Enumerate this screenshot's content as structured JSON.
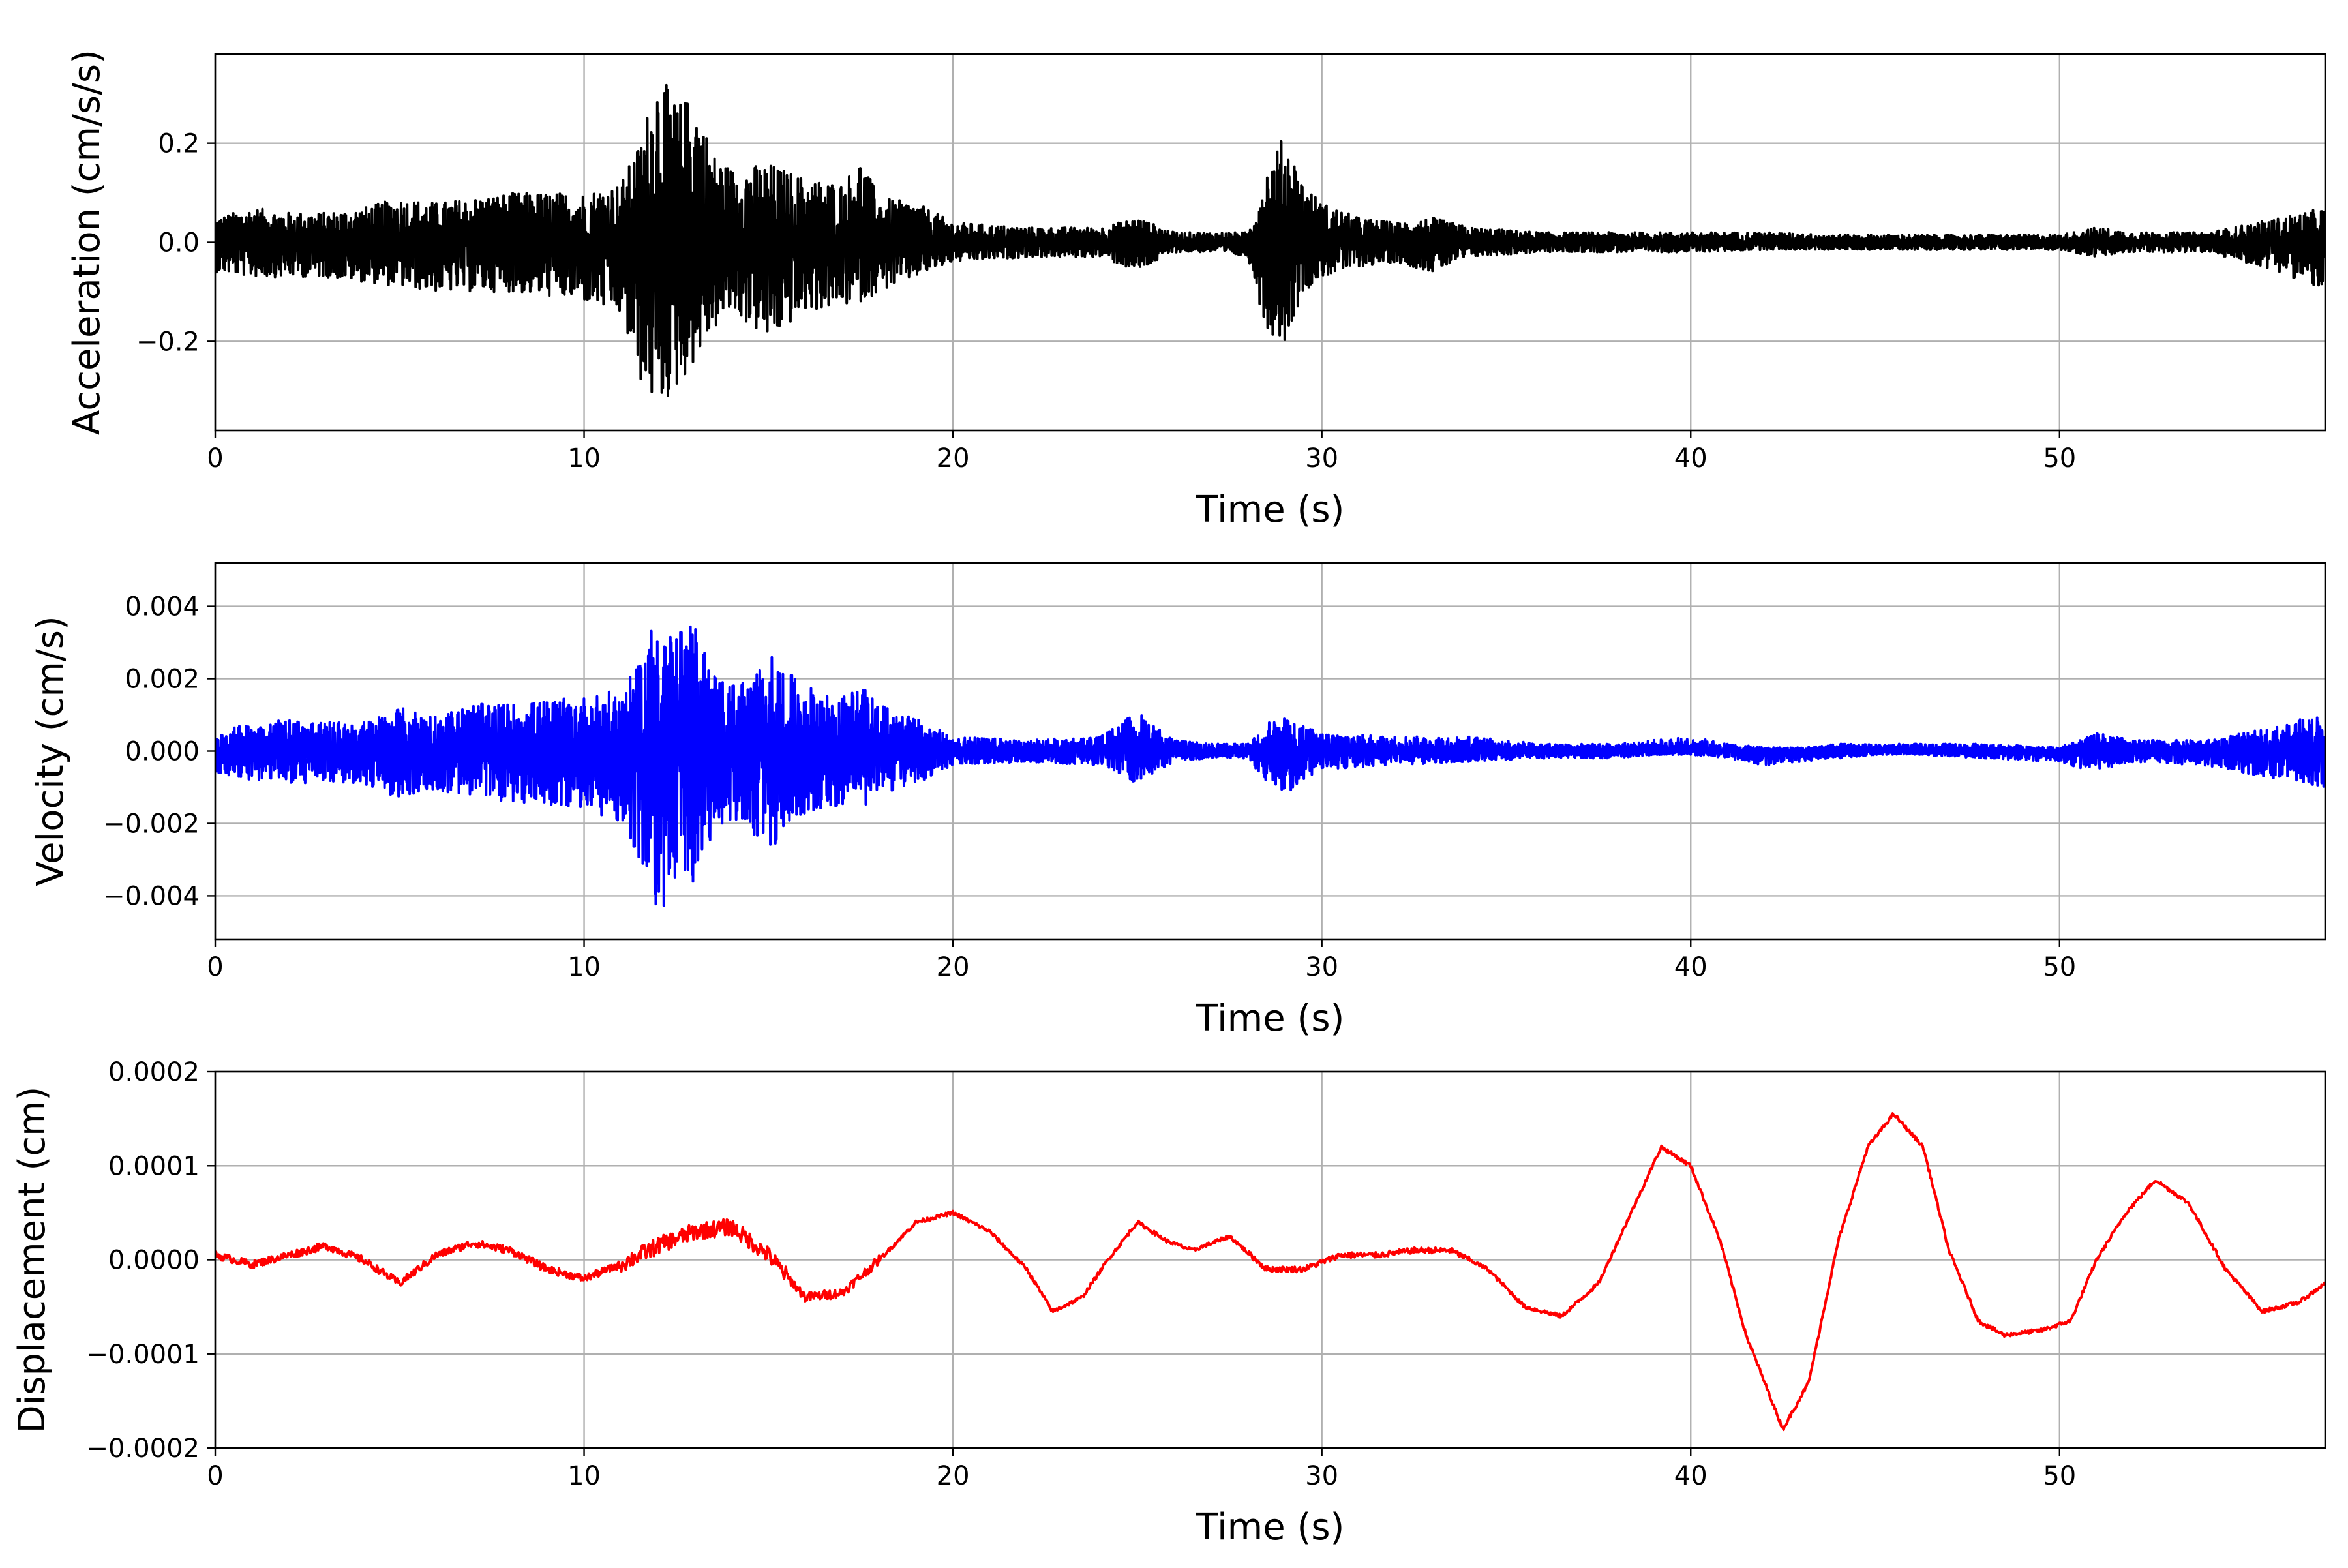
{
  "chart_data": [
    {
      "type": "line",
      "title": "",
      "xlabel": "Time (s)",
      "ylabel": "Acceleration (cm/s/s)",
      "xlim": [
        0,
        57.2
      ],
      "ylim": [
        -0.38,
        0.38
      ],
      "xticks": [
        0,
        10,
        20,
        30,
        40,
        50
      ],
      "xtick_labels": [
        "0",
        "10",
        "20",
        "30",
        "40",
        "50"
      ],
      "yticks": [
        -0.2,
        0.0,
        0.2
      ],
      "ytick_labels": [
        "−0.2",
        "0.0",
        "0.2"
      ],
      "grid": true,
      "color": "#000000",
      "envelope": {
        "x": [
          0,
          1,
          2,
          3,
          4,
          5,
          6,
          7,
          8,
          9,
          10,
          11,
          11.5,
          12,
          12.5,
          13,
          13.5,
          14,
          15,
          16,
          17,
          17.5,
          18,
          19,
          20,
          22,
          24,
          25,
          26,
          27,
          28,
          28.5,
          29,
          29.5,
          30,
          31,
          32,
          33,
          34,
          36,
          38,
          40,
          42,
          44,
          46,
          48,
          50,
          51,
          52,
          54,
          56,
          57.2
        ],
        "upper": [
          0.05,
          0.07,
          0.06,
          0.06,
          0.07,
          0.09,
          0.08,
          0.09,
          0.1,
          0.1,
          0.1,
          0.12,
          0.2,
          0.35,
          0.28,
          0.3,
          0.18,
          0.15,
          0.16,
          0.13,
          0.12,
          0.17,
          0.09,
          0.08,
          0.04,
          0.03,
          0.03,
          0.05,
          0.02,
          0.02,
          0.02,
          0.15,
          0.22,
          0.12,
          0.08,
          0.05,
          0.04,
          0.05,
          0.03,
          0.02,
          0.02,
          0.02,
          0.02,
          0.015,
          0.015,
          0.015,
          0.015,
          0.03,
          0.02,
          0.02,
          0.05,
          0.07
        ],
        "lower": [
          -0.06,
          -0.07,
          -0.07,
          -0.07,
          -0.08,
          -0.09,
          -0.1,
          -0.1,
          -0.1,
          -0.11,
          -0.12,
          -0.15,
          -0.28,
          -0.34,
          -0.3,
          -0.24,
          -0.18,
          -0.14,
          -0.2,
          -0.14,
          -0.13,
          -0.12,
          -0.1,
          -0.07,
          -0.04,
          -0.03,
          -0.03,
          -0.06,
          -0.02,
          -0.02,
          -0.03,
          -0.18,
          -0.2,
          -0.1,
          -0.07,
          -0.05,
          -0.04,
          -0.06,
          -0.03,
          -0.02,
          -0.02,
          -0.02,
          -0.015,
          -0.015,
          -0.015,
          -0.015,
          -0.015,
          -0.03,
          -0.02,
          -0.02,
          -0.06,
          -0.1
        ]
      }
    },
    {
      "type": "line",
      "title": "",
      "xlabel": "Time (s)",
      "ylabel": "Velocity (cm/s)",
      "xlim": [
        0,
        57.2
      ],
      "ylim": [
        -0.0052,
        0.0052
      ],
      "xticks": [
        0,
        10,
        20,
        30,
        40,
        50
      ],
      "xtick_labels": [
        "0",
        "10",
        "20",
        "30",
        "40",
        "50"
      ],
      "yticks": [
        -0.004,
        -0.002,
        0.0,
        0.002,
        0.004
      ],
      "ytick_labels": [
        "−0.004",
        "−0.002",
        "0.000",
        "0.002",
        "0.004"
      ],
      "grid": true,
      "color": "#0000ff",
      "envelope": {
        "x": [
          0,
          1,
          2,
          3,
          4,
          5,
          6,
          7,
          8,
          9,
          10,
          11,
          11.5,
          12,
          12.5,
          13,
          13.5,
          14,
          14.5,
          15,
          15.5,
          16,
          17,
          17.5,
          18,
          19,
          20,
          22,
          24,
          25,
          26,
          27,
          28,
          28.5,
          29,
          30,
          32,
          34,
          36,
          38,
          39,
          40,
          41,
          42,
          43,
          44,
          45,
          46,
          48,
          50,
          51,
          52,
          54,
          56,
          57.2
        ],
        "upper": [
          0.0005,
          0.0008,
          0.0009,
          0.0008,
          0.0008,
          0.0012,
          0.001,
          0.0013,
          0.0013,
          0.0014,
          0.0015,
          0.0017,
          0.0024,
          0.0041,
          0.0033,
          0.0035,
          0.0022,
          0.0019,
          0.002,
          0.0027,
          0.0022,
          0.0018,
          0.0015,
          0.0018,
          0.0013,
          0.0009,
          0.0004,
          0.0003,
          0.0004,
          0.0011,
          0.0003,
          0.0002,
          0.0002,
          0.0008,
          0.0009,
          0.0005,
          0.0004,
          0.0004,
          0.0002,
          0.0002,
          0.0003,
          0.0004,
          0.0002,
          0.0001,
          0.0001,
          0.0002,
          0.0002,
          0.0002,
          0.0002,
          0.0001,
          0.0005,
          0.0003,
          0.0003,
          0.0007,
          0.0011
        ],
        "lower": [
          -0.0006,
          -0.0008,
          -0.0009,
          -0.0009,
          -0.0009,
          -0.0013,
          -0.0011,
          -0.0013,
          -0.0014,
          -0.0015,
          -0.0016,
          -0.002,
          -0.0032,
          -0.0046,
          -0.0037,
          -0.0038,
          -0.0024,
          -0.0019,
          -0.0022,
          -0.0028,
          -0.0022,
          -0.0017,
          -0.0015,
          -0.0016,
          -0.0012,
          -0.0009,
          -0.0004,
          -0.0003,
          -0.0004,
          -0.0009,
          -0.0003,
          -0.0002,
          -0.0002,
          -0.0009,
          -0.0012,
          -0.0005,
          -0.0004,
          -0.0003,
          -0.0002,
          -0.0002,
          -0.0001,
          -0.0001,
          -0.0002,
          -0.0004,
          -0.0003,
          -0.0002,
          -0.0001,
          -0.0001,
          -0.0002,
          -0.0003,
          -0.0006,
          -0.0003,
          -0.0004,
          -0.0008,
          -0.001
        ]
      }
    },
    {
      "type": "line",
      "title": "",
      "xlabel": "Time (s)",
      "ylabel": "Displacement (cm)",
      "xlim": [
        0,
        57.2
      ],
      "ylim": [
        -0.0002,
        0.0002
      ],
      "xticks": [
        0,
        10,
        20,
        30,
        40,
        50
      ],
      "xtick_labels": [
        "0",
        "10",
        "20",
        "30",
        "40",
        "50"
      ],
      "yticks": [
        -0.0002,
        -0.0001,
        0.0,
        0.0001,
        0.0002
      ],
      "ytick_labels": [
        "−0.0002",
        "−0.0001",
        "0.0000",
        "0.0001",
        "0.0002"
      ],
      "grid": true,
      "color": "#ff0000",
      "x": [
        0,
        1,
        2,
        3,
        4,
        5,
        6,
        7,
        8,
        9,
        10,
        11,
        12,
        13,
        14,
        15,
        16,
        17,
        18,
        19,
        20,
        21,
        22,
        22.7,
        23.5,
        24.2,
        25,
        25.8,
        26.5,
        27.5,
        28.5,
        29.5,
        30.5,
        31.5,
        32.5,
        33.5,
        34.5,
        35.5,
        36.5,
        37.5,
        38.5,
        39.2,
        40,
        40.8,
        41.5,
        42.5,
        43.2,
        44,
        44.8,
        45.5,
        46.3,
        47,
        47.8,
        48.5,
        49.5,
        50.3,
        51,
        51.8,
        52.6,
        53.5,
        54.5,
        55.5,
        56.5,
        57.2
      ],
      "y": [
        5e-06,
        -5e-06,
        5e-06,
        1.5e-05,
        0,
        -2.5e-05,
        5e-06,
        1.8e-05,
        1e-05,
        -1e-05,
        -2e-05,
        -5e-06,
        1.5e-05,
        3e-05,
        3.5e-05,
        5e-06,
        -4e-05,
        -3.5e-05,
        0,
        4e-05,
        5e-05,
        3e-05,
        -1e-05,
        -5.5e-05,
        -4e-05,
        0,
        4e-05,
        2e-05,
        1e-05,
        2.5e-05,
        -1e-05,
        -1e-05,
        5e-06,
        5e-06,
        1e-05,
        1e-05,
        -1e-05,
        -5e-05,
        -6e-05,
        -2.5e-05,
        6e-05,
        0.00012,
        0.0001,
        2e-05,
        -8e-05,
        -0.00018,
        -0.00013,
        2e-05,
        0.00012,
        0.000155,
        0.00012,
        1e-05,
        -6.5e-05,
        -8e-05,
        -7.5e-05,
        -6.5e-05,
        0,
        5e-05,
        8.5e-05,
        6e-05,
        -1e-05,
        -5.5e-05,
        -4.5e-05,
        -2.5e-05
      ]
    }
  ]
}
